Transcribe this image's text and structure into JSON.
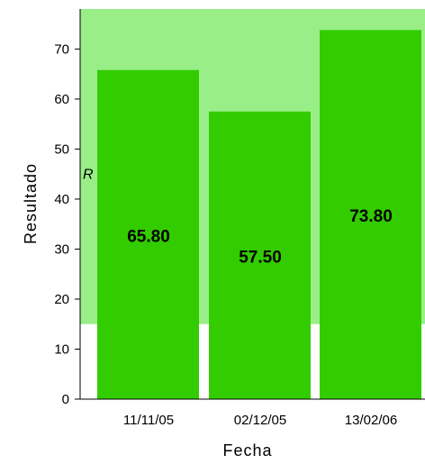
{
  "chart_data": {
    "type": "bar",
    "title": "",
    "xlabel": "Fecha",
    "ylabel": "Resultado",
    "categories": [
      "11/11/05",
      "02/12/05",
      "13/02/06"
    ],
    "values": [
      65.8,
      57.5,
      73.8
    ],
    "value_labels": [
      "65.80",
      "57.50",
      "73.80"
    ],
    "ylim": [
      0,
      78
    ],
    "yticks": [
      0,
      10,
      20,
      30,
      40,
      50,
      60,
      70
    ],
    "grid": false,
    "legend": "none",
    "reference_band": {
      "label": "R",
      "from": 15,
      "to": 78
    },
    "colors": {
      "bar": "#33cc00",
      "band": "#99ee88",
      "axis": "#000000"
    }
  }
}
